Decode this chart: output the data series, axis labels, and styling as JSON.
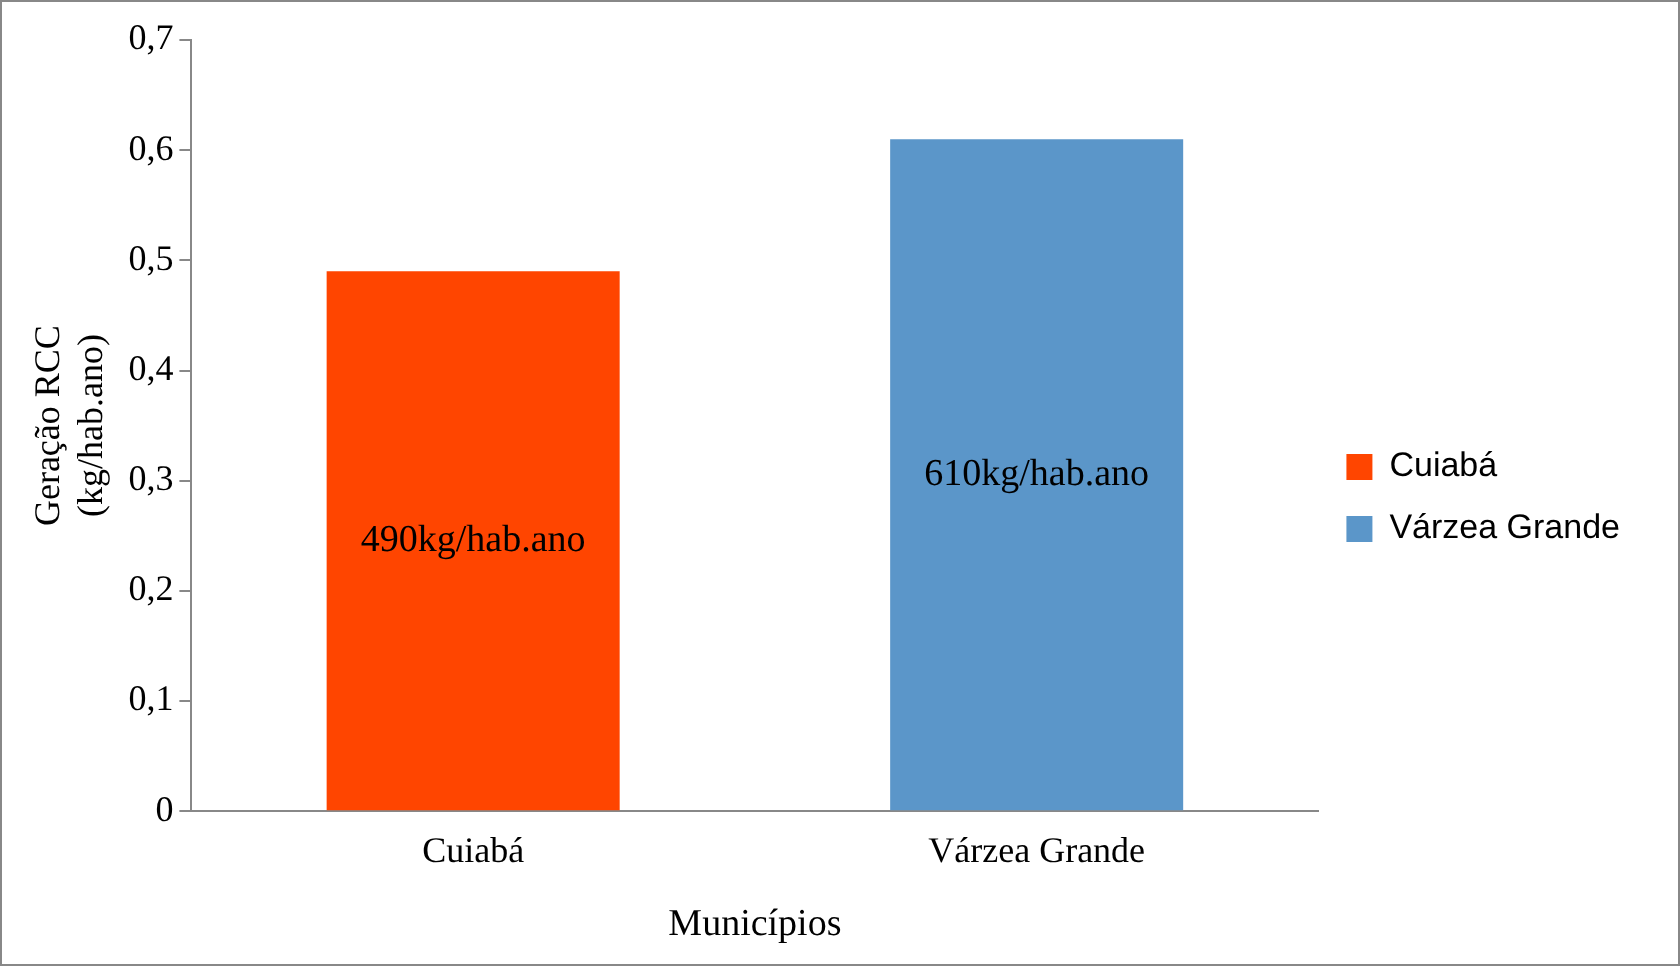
{
  "chart_data": {
    "type": "bar",
    "xlabel": "Municípios",
    "ylabel": "Geração RCC (kg/hab.ano)",
    "categories": [
      "Cuiabá",
      "Várzea Grande"
    ],
    "series": [
      {
        "name": "Cuiabá",
        "color": "#ff4500",
        "values": [
          0.49,
          null
        ]
      },
      {
        "name": "Várzea Grande",
        "color": "#5b96c9",
        "values": [
          null,
          0.61
        ]
      }
    ],
    "annotations": [
      "490kg/hab.ano",
      "610kg/hab.ano"
    ],
    "ylim": [
      0,
      0.7
    ],
    "yticks": [
      0,
      {
        "value": 0.1,
        "label": "0,1"
      },
      {
        "value": 0.2,
        "label": "0,2"
      },
      {
        "value": 0.3,
        "label": "0,3"
      },
      {
        "value": 0.4,
        "label": "0,4"
      },
      {
        "value": 0.5,
        "label": "0,5"
      },
      {
        "value": 0.6,
        "label": "0,6"
      },
      {
        "value": 0.7,
        "label": "0,7"
      }
    ],
    "grid": false,
    "legend": "right"
  }
}
